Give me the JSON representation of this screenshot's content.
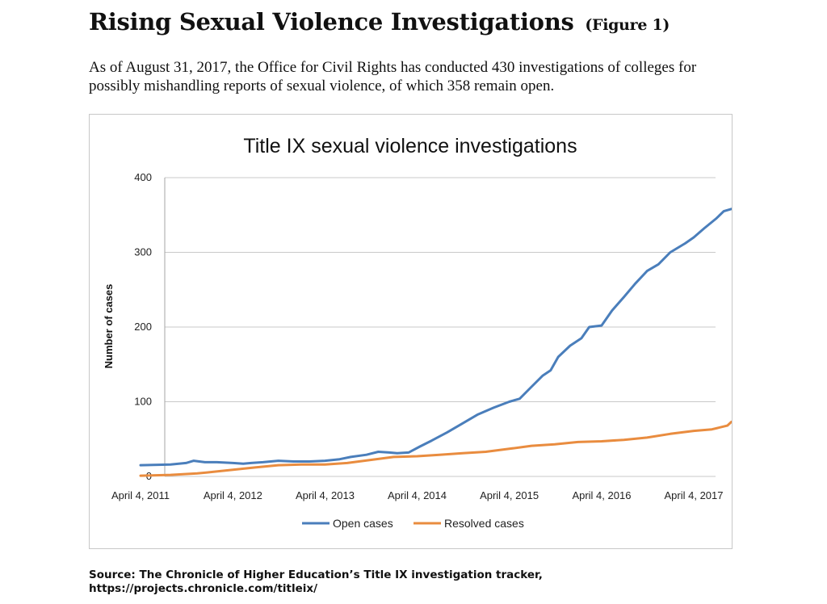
{
  "header": {
    "title": "Rising Sexual Violence Investigations",
    "figure_label": "(Figure 1)",
    "subtitle": "As of August 31, 2017, the Office for Civil Rights has conducted 430 investigations of colleges for possibly mishandling reports of sexual violence, of which 358 remain open."
  },
  "source": {
    "line1": "Source: The Chronicle of Higher Education’s Title IX investigation tracker,",
    "line2": "https://projects.chronicle.com/titleix/"
  },
  "chart_data": {
    "type": "line",
    "title": "Title IX sexual violence investigations",
    "xlabel": "",
    "ylabel": "Number of cases",
    "x_type": "date",
    "xlim": [
      "2011-04-04",
      "2017-08-31"
    ],
    "ylim": [
      0,
      400
    ],
    "y_ticks": [
      0,
      100,
      200,
      300,
      400
    ],
    "x_ticks": [
      {
        "date": "2011-04-04",
        "label": "April 4, 2011"
      },
      {
        "date": "2012-04-04",
        "label": "April 4, 2012"
      },
      {
        "date": "2013-04-04",
        "label": "April 4, 2013"
      },
      {
        "date": "2014-04-04",
        "label": "April 4, 2014"
      },
      {
        "date": "2015-04-04",
        "label": "April 4, 2015"
      },
      {
        "date": "2016-04-04",
        "label": "April 4, 2016"
      },
      {
        "date": "2017-04-04",
        "label": "April 4, 2017"
      }
    ],
    "grid": {
      "horizontal": true,
      "vertical": false
    },
    "legend_position": "bottom",
    "series": [
      {
        "name": "Open cases",
        "color": "#4a7ebb",
        "points": [
          [
            "2011-04-04",
            15
          ],
          [
            "2011-08-01",
            16
          ],
          [
            "2011-10-01",
            18
          ],
          [
            "2011-11-01",
            21
          ],
          [
            "2011-12-15",
            19
          ],
          [
            "2012-02-01",
            19
          ],
          [
            "2012-04-04",
            18
          ],
          [
            "2012-05-15",
            17
          ],
          [
            "2012-06-15",
            18
          ],
          [
            "2012-08-01",
            19
          ],
          [
            "2012-10-01",
            21
          ],
          [
            "2012-12-01",
            20
          ],
          [
            "2013-02-01",
            20
          ],
          [
            "2013-04-04",
            21
          ],
          [
            "2013-06-01",
            23
          ],
          [
            "2013-07-15",
            26
          ],
          [
            "2013-09-15",
            29
          ],
          [
            "2013-11-01",
            33
          ],
          [
            "2013-12-15",
            32
          ],
          [
            "2014-01-15",
            31
          ],
          [
            "2014-03-01",
            32
          ],
          [
            "2014-04-15",
            40
          ],
          [
            "2014-06-01",
            48
          ],
          [
            "2014-08-01",
            59
          ],
          [
            "2014-10-01",
            71
          ],
          [
            "2014-12-01",
            83
          ],
          [
            "2015-02-01",
            92
          ],
          [
            "2015-04-04",
            100
          ],
          [
            "2015-05-15",
            104
          ],
          [
            "2015-07-01",
            120
          ],
          [
            "2015-08-15",
            135
          ],
          [
            "2015-09-15",
            142
          ],
          [
            "2015-10-15",
            160
          ],
          [
            "2015-12-01",
            175
          ],
          [
            "2016-01-15",
            185
          ],
          [
            "2016-02-15",
            200
          ],
          [
            "2016-04-04",
            202
          ],
          [
            "2016-05-15",
            222
          ],
          [
            "2016-07-01",
            240
          ],
          [
            "2016-08-15",
            258
          ],
          [
            "2016-10-01",
            275
          ],
          [
            "2016-11-15",
            284
          ],
          [
            "2017-01-01",
            300
          ],
          [
            "2017-03-01",
            312
          ],
          [
            "2017-04-04",
            320
          ],
          [
            "2017-05-15",
            332
          ],
          [
            "2017-07-01",
            345
          ],
          [
            "2017-08-01",
            355
          ],
          [
            "2017-08-31",
            358
          ]
        ]
      },
      {
        "name": "Resolved cases",
        "color": "#e98c3f",
        "points": [
          [
            "2011-04-04",
            1
          ],
          [
            "2011-08-01",
            2
          ],
          [
            "2011-11-15",
            4
          ],
          [
            "2012-01-15",
            6
          ],
          [
            "2012-04-04",
            9
          ],
          [
            "2012-07-01",
            12
          ],
          [
            "2012-10-01",
            15
          ],
          [
            "2013-01-01",
            16
          ],
          [
            "2013-04-04",
            16
          ],
          [
            "2013-07-01",
            18
          ],
          [
            "2013-10-01",
            22
          ],
          [
            "2014-01-01",
            26
          ],
          [
            "2014-04-04",
            27
          ],
          [
            "2014-07-01",
            29
          ],
          [
            "2014-10-01",
            31
          ],
          [
            "2015-01-01",
            33
          ],
          [
            "2015-04-04",
            37
          ],
          [
            "2015-07-01",
            41
          ],
          [
            "2015-10-01",
            43
          ],
          [
            "2016-01-01",
            46
          ],
          [
            "2016-04-04",
            47
          ],
          [
            "2016-07-01",
            49
          ],
          [
            "2016-10-01",
            52
          ],
          [
            "2017-01-01",
            57
          ],
          [
            "2017-04-04",
            61
          ],
          [
            "2017-06-15",
            63
          ],
          [
            "2017-08-15",
            68
          ],
          [
            "2017-08-31",
            73
          ]
        ]
      }
    ]
  }
}
